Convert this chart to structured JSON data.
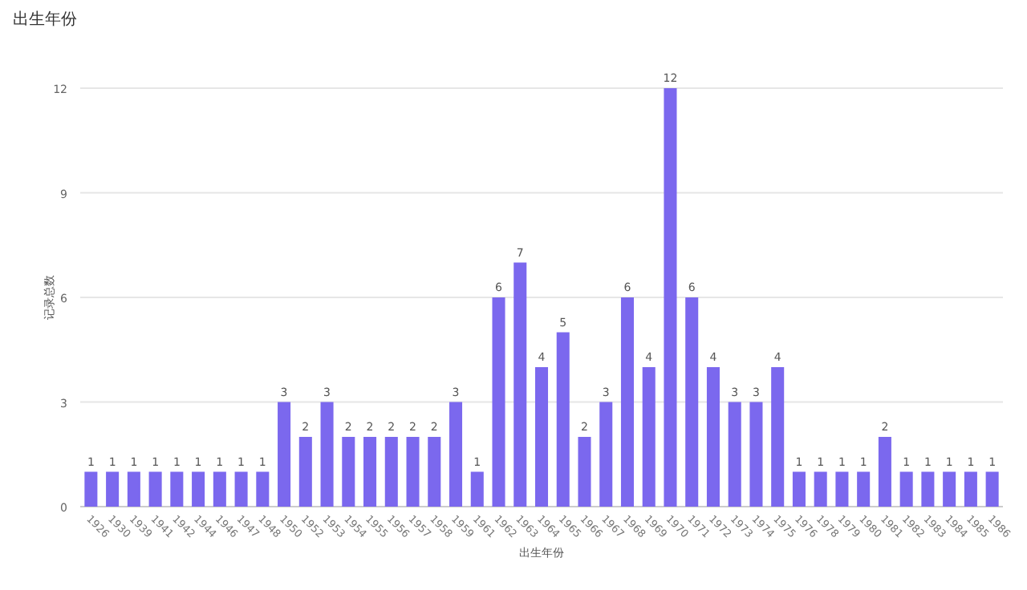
{
  "chart_data": {
    "type": "bar",
    "title": "出生年份",
    "xlabel": "出生年份",
    "ylabel": "记录总数",
    "categories": [
      "1926",
      "1930",
      "1939",
      "1941",
      "1942",
      "1944",
      "1946",
      "1947",
      "1948",
      "1950",
      "1952",
      "1953",
      "1954",
      "1955",
      "1956",
      "1957",
      "1958",
      "1959",
      "1961",
      "1962",
      "1963",
      "1964",
      "1965",
      "1966",
      "1967",
      "1968",
      "1969",
      "1970",
      "1971",
      "1972",
      "1973",
      "1974",
      "1975",
      "1976",
      "1978",
      "1979",
      "1980",
      "1981",
      "1982",
      "1983",
      "1984",
      "1985",
      "1986"
    ],
    "values": [
      1,
      1,
      1,
      1,
      1,
      1,
      1,
      1,
      1,
      3,
      2,
      3,
      2,
      2,
      2,
      2,
      2,
      3,
      1,
      6,
      7,
      4,
      5,
      2,
      3,
      6,
      4,
      12,
      6,
      4,
      3,
      3,
      4,
      1,
      1,
      1,
      1,
      2,
      1,
      1,
      1,
      1,
      1
    ],
    "color": "#7b68ee",
    "ylim": [
      0,
      12
    ],
    "yticks": [
      0,
      3,
      6,
      9,
      12
    ],
    "grid": "y",
    "data_labels": true
  }
}
